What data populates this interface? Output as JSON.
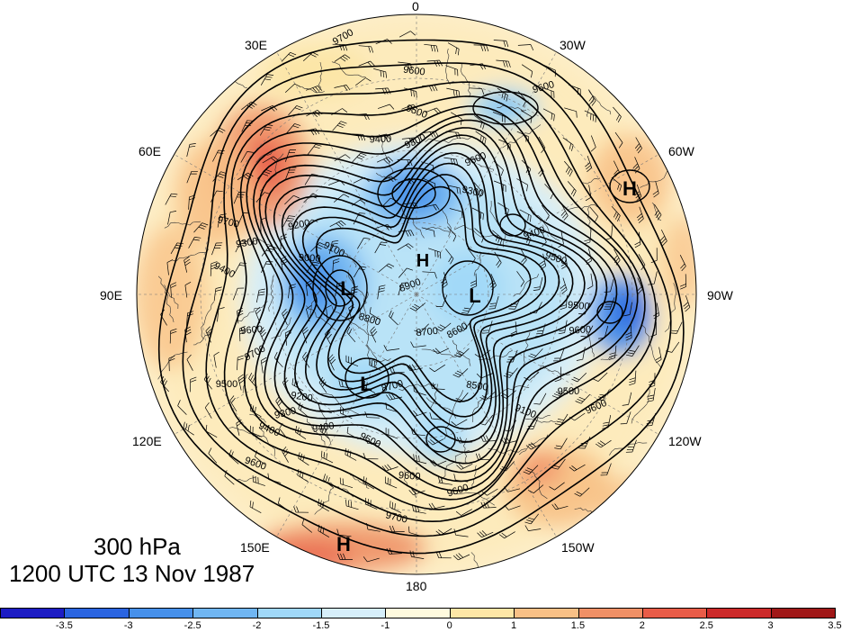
{
  "title": {
    "level": "300 hPa",
    "time": "1200 UTC 13 Nov 1987"
  },
  "longitude_labels": [
    {
      "id": "lon-0",
      "text": "0"
    },
    {
      "id": "lon-30w",
      "text": "30W"
    },
    {
      "id": "lon-60w",
      "text": "60W"
    },
    {
      "id": "lon-90w",
      "text": "90W"
    },
    {
      "id": "lon-120w",
      "text": "120W"
    },
    {
      "id": "lon-150w",
      "text": "150W"
    },
    {
      "id": "lon-180",
      "text": "180"
    },
    {
      "id": "lon-150e",
      "text": "150E"
    },
    {
      "id": "lon-120e",
      "text": "120E"
    },
    {
      "id": "lon-90e",
      "text": "90E"
    },
    {
      "id": "lon-60e",
      "text": "60E"
    },
    {
      "id": "lon-30e",
      "text": "30E"
    }
  ],
  "contour_labels": [
    "9700",
    "9600",
    "9600",
    "9500",
    "9400",
    "9300",
    "9300",
    "9200",
    "9100",
    "9000",
    "8900",
    "8800",
    "8700",
    "8600",
    "8500",
    "8700",
    "9100",
    "9500",
    "9600",
    "9700",
    "9400",
    "9500",
    "9600",
    "9400",
    "9500",
    "9600",
    "9700",
    "9200",
    "9300",
    "9400",
    "9500",
    "9600",
    "9700",
    "9300",
    "9400",
    "9500",
    "9600",
    "9600",
    "9600"
  ],
  "pressure_centers": [
    {
      "id": "high-1",
      "text": "H"
    },
    {
      "id": "high-2",
      "text": "H"
    },
    {
      "id": "high-3",
      "text": "H"
    },
    {
      "id": "low-1",
      "text": "L"
    },
    {
      "id": "low-2",
      "text": "L"
    },
    {
      "id": "low-3",
      "text": "L"
    }
  ],
  "colorbar": {
    "colors": [
      "#1c1cc4",
      "#2a64e0",
      "#4690ea",
      "#70b6f2",
      "#a0d8f8",
      "#d6eefa",
      "#fffade",
      "#fde6a6",
      "#f8c086",
      "#f09066",
      "#e85c48",
      "#cc2a2a",
      "#a01818"
    ],
    "ticks": [
      "-3.5",
      "-3",
      "-2.5",
      "-2",
      "-1.5",
      "-1",
      "0",
      "1",
      "1.5",
      "2",
      "2.5",
      "3",
      "3.5"
    ]
  },
  "colors": {
    "boundary": "#000000",
    "contour": "#000000",
    "background": "#ffffff"
  }
}
